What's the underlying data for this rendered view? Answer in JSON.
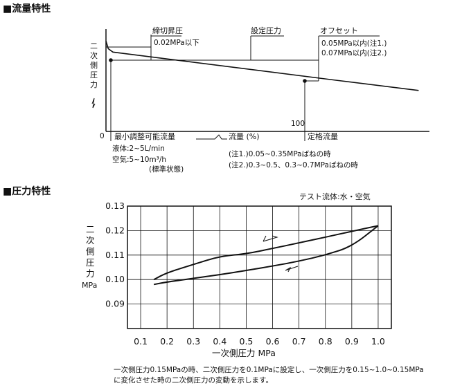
{
  "flow_section": {
    "heading": "■流量特性",
    "y_axis_label": [
      "二",
      "次",
      "側",
      "圧",
      "力"
    ],
    "annotations": {
      "tight_shutoff_label": "締切昇圧",
      "tight_shutoff_value": "0.02MPa以下",
      "set_pressure_label": "設定圧力",
      "offset_label": "オフセット",
      "offset_note1": "0.05MPa以内(注1.)",
      "offset_note2": "0.07MPa以内(注2.)"
    },
    "x_zero": "0",
    "x_hundred": "100",
    "min_flow_label": "最小調整可能流量",
    "x_axis_label": "流量 (%)",
    "rated_flow_label": "定格流量",
    "liquid_line": "液体:2~5L/min",
    "air_line": "空気:5~10m³/h",
    "standard_state": "(標準状態)",
    "note1": "(注1.)0.05~0.35MPaばねの時",
    "note2": "(注2.)0.3~0.5、0.3~0.7MPaばねの時"
  },
  "pressure_section": {
    "heading": "■圧力特性",
    "test_fluid": "テスト流体:水・空気",
    "y_axis_label": [
      "二",
      "次",
      "側",
      "圧",
      "力"
    ],
    "y_unit": "MPa",
    "x_axis_label": "一次側圧力 MPa",
    "caption_line1": "一次側圧力0.15MPaの時、二次側圧力を0.1MPaに設定し、一次側圧力を0.15~1.0~0.15MPa",
    "caption_line2": "に変化させた時の二次側圧力の変動を示します。"
  },
  "chart_data": [
    {
      "type": "line",
      "title": "流量特性",
      "xlabel": "流量 (%)",
      "ylabel": "二次側圧力",
      "x_ticks": [
        "0",
        "100"
      ],
      "series": [
        {
          "values": [
            {
              "x": 0,
              "y": 1.06
            },
            {
              "x": 1,
              "y": 0.97
            },
            {
              "x": 3,
              "y": 0.93
            },
            {
              "x": 100,
              "y": 0.6
            },
            {
              "x": 136,
              "y": 0.48
            }
          ]
        }
      ],
      "set_pressure_level": 0.92,
      "tight_shutoff_level": 1.06,
      "rated_flow": 100,
      "offset_level": 0.6,
      "ylim": [
        0,
        1.2
      ],
      "xlim": [
        0,
        140
      ]
    },
    {
      "type": "line",
      "xlabel": "一次側圧力 MPa",
      "ylabel": "二次側圧力 MPa",
      "test_fluid": "テスト流体:水・空気",
      "xlim": [
        0.1,
        1.0
      ],
      "ylim": [
        0.08,
        0.13
      ],
      "x_ticks": [
        "0.1",
        "0.2",
        "0.3",
        "0.4",
        "0.5",
        "0.6",
        "0.7",
        "0.8",
        "0.9",
        "1.0"
      ],
      "y_ticks": [
        "0.09",
        "0.10",
        "0.11",
        "0.12",
        "0.13"
      ],
      "grid": true,
      "series": [
        {
          "direction": "increasing",
          "x": [
            0.15,
            0.2,
            0.3,
            0.4,
            0.5,
            0.6,
            0.7,
            0.8,
            0.9,
            1.0
          ],
          "y": [
            0.098,
            0.099,
            0.1005,
            0.102,
            0.1037,
            0.1055,
            0.1075,
            0.11,
            0.1135,
            0.122
          ]
        },
        {
          "direction": "decreasing",
          "x": [
            1.0,
            0.9,
            0.8,
            0.7,
            0.6,
            0.5,
            0.4,
            0.3,
            0.2,
            0.15
          ],
          "y": [
            0.122,
            0.1197,
            0.1173,
            0.115,
            0.1127,
            0.1105,
            0.1095,
            0.1062,
            0.1028,
            0.1
          ]
        }
      ]
    }
  ]
}
